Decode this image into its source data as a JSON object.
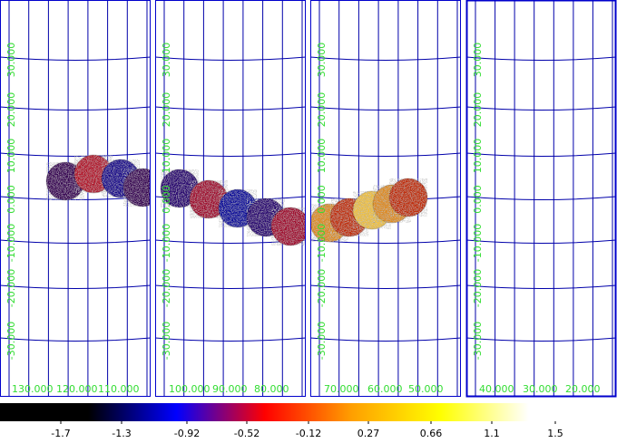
{
  "colors": {
    "grid": "#0000aa",
    "frame": "#0000cc",
    "labels": "#33dd33",
    "background": "#ffffff"
  },
  "panels": [
    {
      "id": "panel-1",
      "ra_labels": [
        "130.000",
        "120.000",
        "110.000"
      ],
      "dec_labels": [
        "30.000",
        "20.000",
        "10.000",
        "0.000",
        "-10.000",
        "-20.000",
        "-30.000"
      ],
      "highlighted": false
    },
    {
      "id": "panel-2",
      "ra_labels": [
        "100.000",
        "90.000",
        "80.000"
      ],
      "dec_labels": [
        "30.000",
        "20.000",
        "10.000",
        "0.000",
        "-10.000",
        "-20.000",
        "-30.000"
      ],
      "highlighted": false
    },
    {
      "id": "panel-3",
      "ra_labels": [
        "70.000",
        "60.000",
        "50.000"
      ],
      "dec_labels": [
        "30.000",
        "20.000",
        "10.000",
        "0.000",
        "-10.000",
        "-20.000",
        "-30.000"
      ],
      "highlighted": false
    },
    {
      "id": "panel-4",
      "ra_labels": [
        "40.000",
        "30.000",
        "20.000"
      ],
      "dec_labels": [
        "30.000",
        "20.000",
        "10.000",
        "0.000",
        "-10.000",
        "-20.000",
        "-30.000"
      ],
      "highlighted": true
    }
  ],
  "colorbar": {
    "ticks": [
      "-1.7",
      "-1.3",
      "-0.92",
      "-0.52",
      "-0.12",
      "0.27",
      "0.66",
      "1.1",
      "1.5"
    ],
    "stops": [
      "#000000",
      "#000000",
      "#0000ff",
      "#ff0000",
      "#ffa000",
      "#ffff00",
      "#ffffff",
      "#ffffff"
    ]
  }
}
